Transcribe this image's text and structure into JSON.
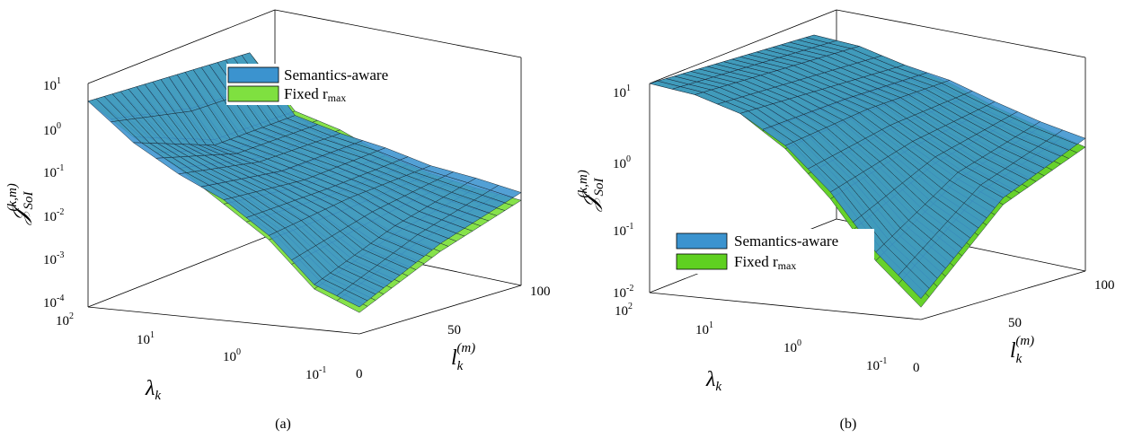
{
  "chart_data": [
    {
      "type": "surface",
      "panel_label": "(a)",
      "xlabel": "λk",
      "ylabel": "lk(m)",
      "zlabel": "J SoI (k,m)",
      "x_ticks": [
        {
          "base": "10",
          "exp": "2"
        },
        {
          "base": "10",
          "exp": "1"
        },
        {
          "base": "10",
          "exp": "0"
        },
        {
          "base": "10",
          "exp": "-1"
        }
      ],
      "y_ticks": [
        "0",
        "50",
        "100"
      ],
      "z_ticks": [
        {
          "base": "10",
          "exp": "1"
        },
        {
          "base": "10",
          "exp": "0"
        },
        {
          "base": "10",
          "exp": "-1"
        },
        {
          "base": "10",
          "exp": "-2"
        },
        {
          "base": "10",
          "exp": "-3"
        },
        {
          "base": "10",
          "exp": "-4"
        }
      ],
      "x_scale": "log",
      "z_scale": "log",
      "xlim": [
        0.1,
        100
      ],
      "ylim": [
        0,
        100
      ],
      "zlim": [
        0.0001,
        10
      ],
      "legend_placement": "top-center",
      "series": [
        {
          "name": "Semantics-aware",
          "color": "#3b93cf"
        },
        {
          "name": "Fixed r_max",
          "label_text": "Fixed r",
          "label_sub": "max",
          "color": "#7fe040"
        }
      ],
      "lambda_samples": [
        100,
        31.6,
        10,
        3.16,
        1,
        0.316,
        0.1
      ],
      "l_samples": [
        0,
        50,
        100
      ],
      "surfaces": {
        "Semantics-aware": [
          [
            4.0,
            4.0,
            4.0
          ],
          [
            0.6,
            0.15,
            0.2
          ],
          [
            0.15,
            0.08,
            0.1
          ],
          [
            0.05,
            0.04,
            0.06
          ],
          [
            0.01,
            0.02,
            0.03
          ],
          [
            0.001,
            0.006,
            0.02
          ],
          [
            0.0004,
            0.003,
            0.012
          ]
        ],
        "Fixed r_max": [
          [
            4.0,
            4.0,
            4.0
          ],
          [
            0.8,
            0.2,
            0.25
          ],
          [
            0.2,
            0.1,
            0.12
          ],
          [
            0.04,
            0.03,
            0.04
          ],
          [
            0.008,
            0.012,
            0.02
          ],
          [
            0.0008,
            0.004,
            0.012
          ],
          [
            0.0003,
            0.002,
            0.008
          ]
        ]
      }
    },
    {
      "type": "surface",
      "panel_label": "(b)",
      "xlabel": "λk",
      "ylabel": "lk(m)",
      "zlabel": "J SoI (k,m)",
      "x_ticks": [
        {
          "base": "10",
          "exp": "2"
        },
        {
          "base": "10",
          "exp": "1"
        },
        {
          "base": "10",
          "exp": "0"
        },
        {
          "base": "10",
          "exp": "-1"
        }
      ],
      "y_ticks": [
        "0",
        "50",
        "100"
      ],
      "z_ticks": [
        {
          "base": "10",
          "exp": "1"
        },
        {
          "base": "10",
          "exp": "0"
        },
        {
          "base": "10",
          "exp": "-1"
        },
        {
          "base": "10",
          "exp": "-2"
        }
      ],
      "x_scale": "log",
      "z_scale": "log",
      "xlim": [
        0.1,
        100
      ],
      "ylim": [
        0,
        100
      ],
      "zlim": [
        0.01,
        10
      ],
      "legend_placement": "center-left",
      "series": [
        {
          "name": "Semantics-aware",
          "color": "#3b93cf"
        },
        {
          "name": "Fixed r_max",
          "label_text": "Fixed r",
          "label_sub": "max",
          "color": "#5fd020"
        }
      ],
      "lambda_samples": [
        100,
        31.6,
        10,
        3.16,
        1,
        0.316,
        0.1
      ],
      "l_samples": [
        0,
        50,
        100
      ],
      "surfaces": {
        "Semantics-aware": [
          [
            10,
            10,
            10
          ],
          [
            8,
            8,
            8
          ],
          [
            5,
            5,
            5
          ],
          [
            2,
            3,
            3.5
          ],
          [
            0.5,
            1.2,
            2
          ],
          [
            0.08,
            0.5,
            1.2
          ],
          [
            0.02,
            0.25,
            0.8
          ]
        ],
        "Fixed r_max": [
          [
            10,
            10,
            10
          ],
          [
            8,
            8,
            8
          ],
          [
            5,
            5,
            5
          ],
          [
            1.8,
            2.8,
            3.2
          ],
          [
            0.4,
            1.0,
            1.7
          ],
          [
            0.06,
            0.4,
            1.0
          ],
          [
            0.015,
            0.2,
            0.6
          ]
        ]
      }
    }
  ]
}
